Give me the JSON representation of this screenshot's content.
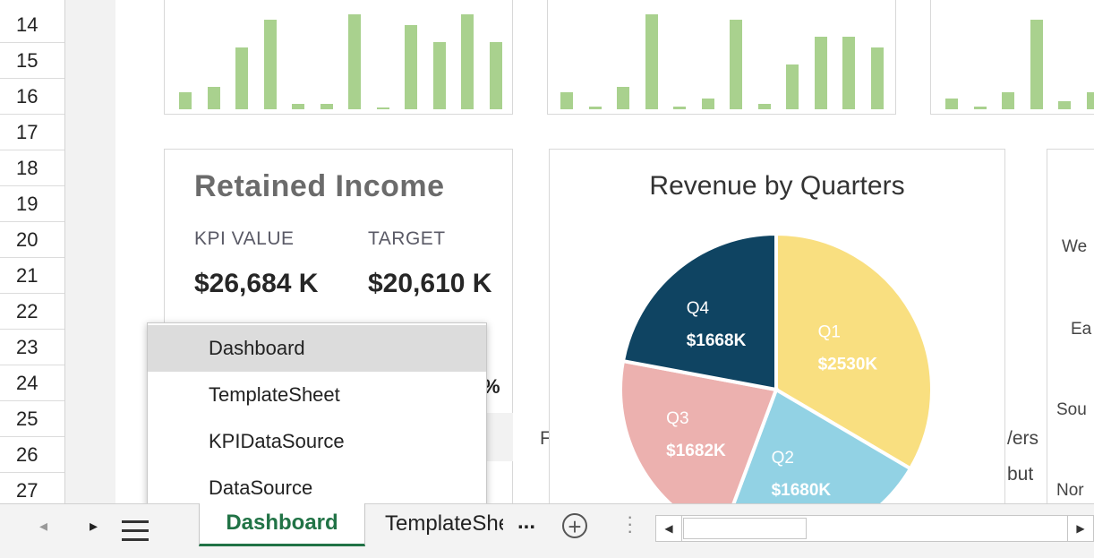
{
  "row_headers": [
    "14",
    "15",
    "16",
    "17",
    "18",
    "19",
    "20",
    "21",
    "22",
    "23",
    "24",
    "25",
    "26",
    "27"
  ],
  "mini_charts": [
    {
      "values": [
        3,
        4,
        11,
        16,
        1,
        1,
        17,
        0,
        15,
        12,
        17,
        12
      ]
    },
    {
      "values": [
        3,
        0.5,
        4,
        17,
        0.5,
        2,
        16,
        1,
        8,
        13,
        13,
        11
      ]
    },
    {
      "values": [
        2,
        0.5,
        3,
        16,
        1.5,
        3
      ]
    }
  ],
  "kpi": {
    "title": "Retained Income",
    "kpi_label": "KPI VALUE",
    "target_label": "TARGET",
    "kpi_value": "$26,684 K",
    "target_value": "$20,610 K",
    "pct_fragment": "%"
  },
  "chart_data": {
    "type": "pie",
    "title": "Revenue by Quarters",
    "series": [
      {
        "name": "Q1",
        "value": 2530,
        "label": "$2530K",
        "color": "#f9df80"
      },
      {
        "name": "Q2",
        "value": 1680,
        "label": "$1680K",
        "color": "#92d2e4"
      },
      {
        "name": "Q3",
        "value": 1682,
        "label": "$1682K",
        "color": "#ecb1af"
      },
      {
        "name": "Q4",
        "value": 1668,
        "label": "$1668K",
        "color": "#0f4462"
      }
    ]
  },
  "clipped": {
    "left_fragment": "F",
    "right_fragment_1": "/ers",
    "right_fragment_2": "but",
    "regions": [
      "We",
      "Ea",
      "Sou",
      "Nor"
    ]
  },
  "sheet_list": {
    "items": [
      "Dashboard",
      "TemplateSheet",
      "KPIDataSource",
      "DataSource"
    ],
    "selected": "Dashboard"
  },
  "tabbar": {
    "active_tab": "Dashboard",
    "second_tab": "TemplateSheet",
    "more": "...",
    "add": "+"
  }
}
